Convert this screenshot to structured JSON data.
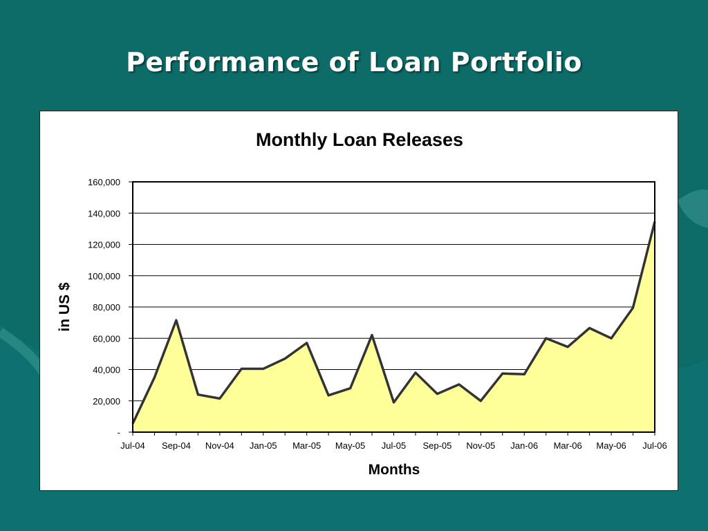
{
  "slide": {
    "title": "Performance of Loan Portfolio"
  },
  "colors": {
    "background": "#0d6b68",
    "area_fill": "#ffff99",
    "line": "#333333"
  },
  "chart_data": {
    "type": "area",
    "title": "Monthly Loan Releases",
    "xlabel": "Months",
    "ylabel": "in US $",
    "ylim": [
      0,
      160000
    ],
    "yticks": [
      0,
      20000,
      40000,
      60000,
      80000,
      100000,
      120000,
      140000,
      160000
    ],
    "ytick_labels": [
      "-",
      "20,000",
      "40,000",
      "60,000",
      "80,000",
      "100,000",
      "120,000",
      "140,000",
      "160,000"
    ],
    "xtick_labels": [
      "Jul-04",
      "Sep-04",
      "Nov-04",
      "Jan-05",
      "Mar-05",
      "May-05",
      "Jul-05",
      "Sep-05",
      "Nov-05",
      "Jan-06",
      "Mar-06",
      "May-06",
      "Jul-06"
    ],
    "grid": true,
    "legend": "none",
    "categories": [
      "Jul-04",
      "Aug-04",
      "Sep-04",
      "Oct-04",
      "Nov-04",
      "Dec-04",
      "Jan-05",
      "Feb-05",
      "Mar-05",
      "Apr-05",
      "May-05",
      "Jun-05",
      "Jul-05",
      "Aug-05",
      "Sep-05",
      "Oct-05",
      "Nov-05",
      "Dec-05",
      "Jan-06",
      "Feb-06",
      "Mar-06",
      "Apr-06",
      "May-06",
      "Jun-06",
      "Jul-06"
    ],
    "values": [
      5500,
      35000,
      71500,
      24000,
      21500,
      40500,
      40500,
      47000,
      57000,
      23500,
      28000,
      62000,
      19000,
      38000,
      24500,
      30500,
      20000,
      37500,
      37000,
      60000,
      54500,
      66500,
      60000,
      79500,
      134500
    ]
  }
}
